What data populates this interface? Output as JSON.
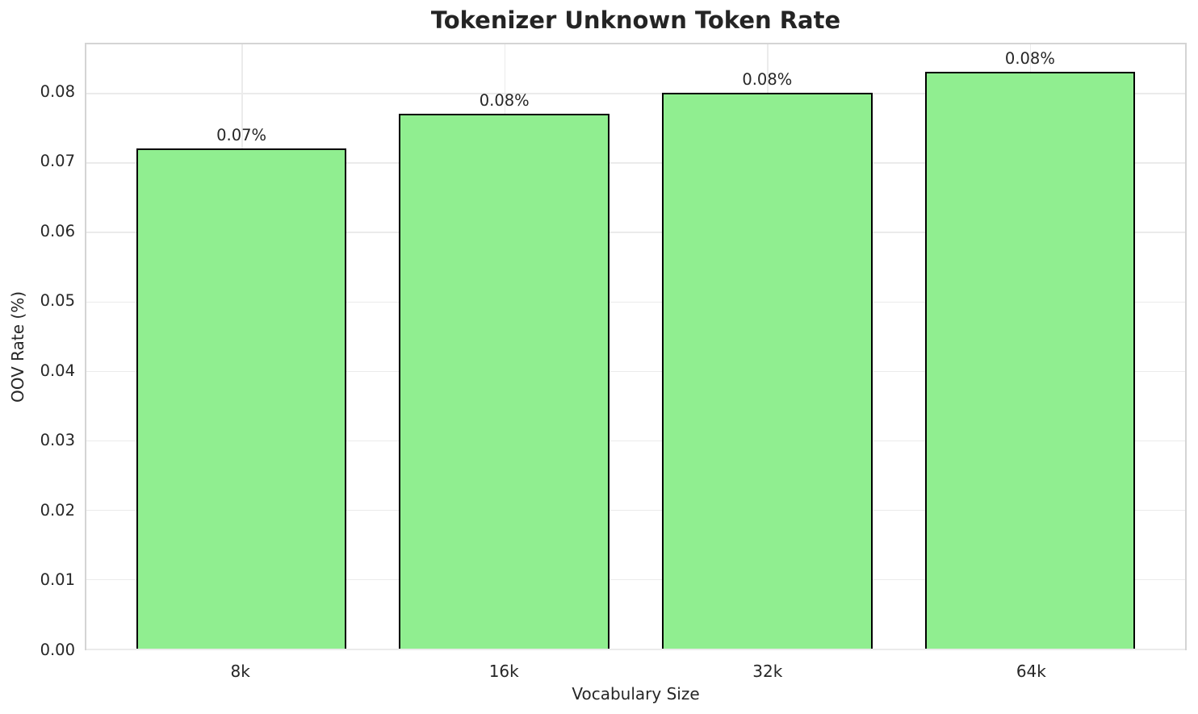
{
  "title": "Tokenizer Unknown Token Rate",
  "colors": {
    "bar_fill": "#90EE90",
    "bar_edge": "#000000",
    "grid": "#ebebeb",
    "spine": "#d4d4d4",
    "text": "#262626",
    "background": "#ffffff"
  },
  "chart_data": {
    "type": "bar",
    "title": "Tokenizer Unknown Token Rate",
    "categories": [
      "8k",
      "16k",
      "32k",
      "64k"
    ],
    "values": [
      0.072,
      0.077,
      0.08,
      0.083
    ],
    "bar_labels": [
      "0.07%",
      "0.08%",
      "0.08%",
      "0.08%"
    ],
    "xlabel": "Vocabulary Size",
    "ylabel": "OOV Rate (%)",
    "ylim": [
      0,
      0.087
    ],
    "yticks": [
      0.0,
      0.01,
      0.02,
      0.03,
      0.04,
      0.05,
      0.06,
      0.07,
      0.08
    ],
    "ytick_labels": [
      "0.00",
      "0.01",
      "0.02",
      "0.03",
      "0.04",
      "0.05",
      "0.06",
      "0.07",
      "0.08"
    ],
    "grid": true,
    "grid_axes": "both",
    "legend": null,
    "bar_width_fraction": 0.8,
    "x_edge_margin": 0.59
  }
}
